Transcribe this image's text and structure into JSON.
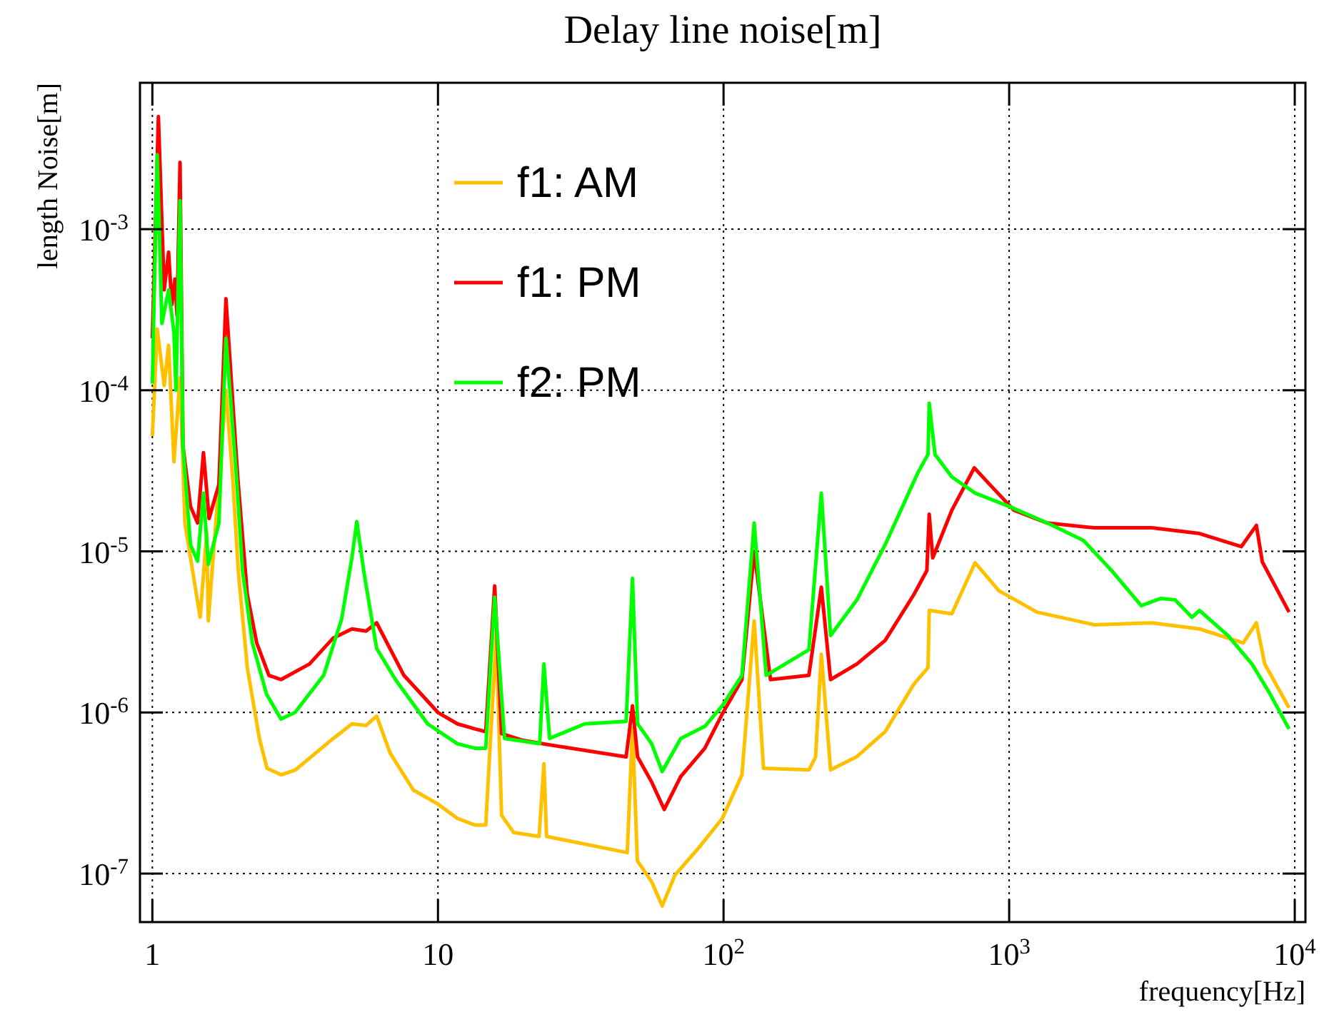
{
  "chart_data": {
    "type": "line",
    "title": "Delay line noise[m]",
    "xlabel": "frequency[Hz]",
    "ylabel": "length Noise[m]",
    "log": "xy",
    "grid": true,
    "legend": "top left",
    "xlim": [
      0.905,
      10900
    ],
    "ylim": [
      5e-08,
      0.0081
    ],
    "xticks": [
      1,
      10,
      {
        "value": 100,
        "label": "10$^{2}$"
      },
      {
        "value": 1000,
        "label": "10$^{3}$"
      },
      {
        "value": 10000,
        "label": "10$^{4}$"
      }
    ],
    "yticks": [
      {
        "value": 1e-07,
        "label": "10$^{-7}$"
      },
      {
        "value": 1e-06,
        "label": "10$^{-6}$"
      },
      {
        "value": 1e-05,
        "label": "10$^{-5}$"
      },
      {
        "value": 0.0001,
        "label": "10$^{-4}$"
      },
      {
        "value": 0.001,
        "label": "10$^{-3}$"
      }
    ],
    "series": [
      {
        "name": "f1: AM",
        "color": "#ffc000",
        "x": [
          1,
          1.04,
          1.1,
          1.14,
          1.19,
          1.25,
          1.3,
          1.47,
          1.55,
          1.57,
          1.81,
          1.91,
          2.0,
          2.15,
          2.37,
          2.52,
          2.83,
          3.17,
          4.3,
          5.0,
          5.6,
          6.1,
          6.8,
          8.2,
          10,
          11.7,
          13.5,
          14.7,
          16,
          16.7,
          18.4,
          22.6,
          23.5,
          24,
          46,
          48,
          49.9,
          56,
          61,
          67.6,
          82,
          99,
          116,
          128,
          138,
          199,
          210,
          220,
          237,
          292,
          368,
          464,
          520,
          525,
          630,
          760,
          920,
          1250,
          1990,
          3160,
          4640,
          6600,
          7340,
          7850,
          9550
        ],
        "values": [
          5.2e-05,
          0.00024,
          0.000107,
          0.00019,
          3.6e-05,
          0.00012,
          1.5e-05,
          3.9e-06,
          1.3e-05,
          3.7e-06,
          0.0001,
          2.9e-05,
          7.5e-06,
          1.9e-06,
          6.9e-07,
          4.5e-07,
          4.1e-07,
          4.4e-07,
          6.9e-07,
          8.5e-07,
          8.3e-07,
          9.5e-07,
          5.6e-07,
          3.3e-07,
          2.7e-07,
          2.2e-07,
          2e-07,
          2e-07,
          3e-06,
          2.3e-07,
          1.8e-07,
          1.7e-07,
          4.8e-07,
          1.7e-07,
          1.35e-07,
          8e-07,
          1.2e-07,
          8.9e-08,
          6.3e-08,
          9.8e-08,
          1.45e-07,
          2.2e-07,
          4.1e-07,
          3.7e-06,
          4.5e-07,
          4.4e-07,
          5.3e-07,
          2.3e-06,
          4.4e-07,
          5.3e-07,
          7.6e-07,
          1.5e-06,
          1.9e-06,
          4.3e-06,
          4.1e-06,
          8.5e-06,
          5.7e-06,
          4.2e-06,
          3.5e-06,
          3.6e-06,
          3.3e-06,
          2.7e-06,
          3.6e-06,
          2e-06,
          1.07e-06
        ]
      },
      {
        "name": "f1: PM",
        "color": "#ff0000",
        "x": [
          1,
          1.05,
          1.1,
          1.14,
          1.17,
          1.2,
          1.22,
          1.25,
          1.28,
          1.36,
          1.44,
          1.51,
          1.58,
          1.71,
          1.81,
          1.99,
          2.15,
          2.32,
          2.56,
          2.82,
          3.55,
          4.3,
          5.0,
          5.6,
          6.1,
          7.6,
          10,
          11.7,
          13.5,
          14.7,
          15.8,
          16.7,
          19.9,
          23.2,
          45.6,
          48,
          50,
          56,
          62,
          70.8,
          86,
          99,
          116,
          128,
          146,
          199,
          220,
          237,
          293,
          368,
          464,
          515,
          525,
          540,
          630,
          755,
          855,
          1040,
          1360,
          1990,
          3160,
          4640,
          6500,
          7340,
          7700,
          9550
        ],
        "values": [
          0.00021,
          0.005,
          0.00042,
          0.00072,
          0.00034,
          0.00049,
          0.00029,
          0.0026,
          4.5e-05,
          1.9e-05,
          1.5e-05,
          4.1e-05,
          1.6e-05,
          2.6e-05,
          0.00037,
          2.9e-05,
          5.4e-06,
          2.7e-06,
          1.7e-06,
          1.6e-06,
          2e-06,
          2.9e-06,
          3.3e-06,
          3.2e-06,
          3.6e-06,
          1.7e-06,
          1e-06,
          8.5e-07,
          7.9e-07,
          7.6e-07,
          6.1e-06,
          7.4e-07,
          6.7e-07,
          6.4e-07,
          5.3e-07,
          1.1e-06,
          5.3e-07,
          3.7e-07,
          2.5e-07,
          4e-07,
          6e-07,
          9.8e-07,
          1.6e-06,
          1e-05,
          1.6e-06,
          1.7e-06,
          6e-06,
          1.6e-06,
          2e-06,
          2.8e-06,
          5.4e-06,
          7.6e-06,
          1.7e-05,
          9.1e-06,
          1.8e-05,
          3.3e-05,
          2.6e-05,
          1.8e-05,
          1.5e-05,
          1.4e-05,
          1.4e-05,
          1.29e-05,
          1.07e-05,
          1.45e-05,
          8.6e-06,
          4.2e-06
        ]
      },
      {
        "name": "f2: PM",
        "color": "#00ff00",
        "x": [
          1,
          1.04,
          1.08,
          1.14,
          1.19,
          1.21,
          1.25,
          1.28,
          1.36,
          1.44,
          1.51,
          1.57,
          1.71,
          1.81,
          1.97,
          2.07,
          2.24,
          2.51,
          2.82,
          3.16,
          3.98,
          4.6,
          5.0,
          5.2,
          5.5,
          6.1,
          7.1,
          9.2,
          11.7,
          13.5,
          14.7,
          15.8,
          17.1,
          22.7,
          23.5,
          24.6,
          32.7,
          45.6,
          48,
          50,
          56,
          61,
          70.8,
          86,
          99,
          116,
          128,
          141,
          199,
          220,
          237,
          293,
          368,
          480,
          520,
          525,
          550,
          630,
          760,
          1000,
          1360,
          1820,
          2300,
          2900,
          3390,
          3810,
          4370,
          4640,
          5840,
          7080,
          8200,
          9550
        ],
        "values": [
          0.00011,
          0.0029,
          0.00026,
          0.00042,
          0.00023,
          0.0001,
          0.0015,
          4.5e-05,
          1.1e-05,
          8.7e-06,
          2.3e-05,
          8.3e-06,
          1.5e-05,
          0.00021,
          2.9e-05,
          7.5e-06,
          2.7e-06,
          1.3e-06,
          9.1e-07,
          1e-06,
          1.7e-06,
          3.8e-06,
          9.2e-06,
          1.53e-05,
          7.5e-06,
          2.5e-06,
          1.6e-06,
          8.5e-07,
          6.4e-07,
          6e-07,
          6e-07,
          5.2e-06,
          6.9e-07,
          6.4e-07,
          2e-06,
          6.9e-07,
          8.5e-07,
          8.8e-07,
          6.8e-06,
          8.5e-07,
          6.4e-07,
          4.3e-07,
          6.9e-07,
          8.2e-07,
          1.1e-06,
          1.7e-06,
          1.5e-05,
          1.7e-06,
          2.45e-06,
          2.3e-05,
          3e-06,
          5e-06,
          1.1e-05,
          3.1e-05,
          4e-05,
          8.3e-05,
          4e-05,
          2.9e-05,
          2.3e-05,
          1.9e-05,
          1.5e-05,
          1.17e-05,
          7.5e-06,
          4.6e-06,
          5.1e-06,
          5e-06,
          3.9e-06,
          4.3e-06,
          3e-06,
          2e-06,
          1.3e-06,
          7.9e-07
        ]
      }
    ]
  }
}
